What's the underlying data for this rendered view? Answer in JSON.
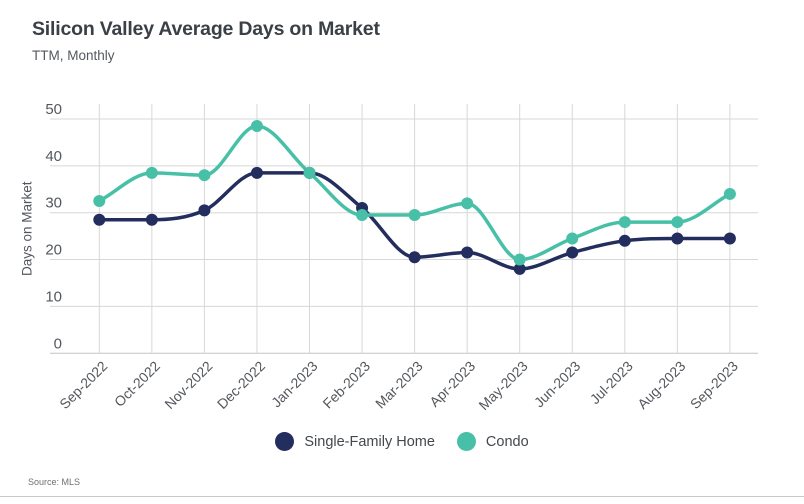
{
  "header": {
    "title": "Silicon Valley Average Days on Market",
    "subtitle": "TTM, Monthly"
  },
  "source": {
    "label": "Source: MLS"
  },
  "legend": {
    "items": [
      {
        "label": "Single-Family Home",
        "color": "#232d5e"
      },
      {
        "label": "Condo",
        "color": "#48c0a7"
      }
    ]
  },
  "chart_data": {
    "type": "line",
    "title": "Silicon Valley Average Days on Market",
    "subtitle": "TTM, Monthly",
    "ylabel": "Days on Market",
    "xlabel": "",
    "x": [
      "Sep-2022",
      "Oct-2022",
      "Nov-2022",
      "Dec-2022",
      "Jan-2023",
      "Feb-2023",
      "Mar-2023",
      "Apr-2023",
      "May-2023",
      "Jun-2023",
      "Jul-2023",
      "Aug-2023",
      "Sep-2023"
    ],
    "series": [
      {
        "name": "Single-Family Home",
        "color": "#232d5e",
        "values": [
          28.5,
          28.5,
          30.5,
          38.5,
          38.5,
          31,
          20.5,
          21.5,
          18,
          21.5,
          24,
          24.5,
          24.5
        ]
      },
      {
        "name": "Condo",
        "color": "#48c0a7",
        "values": [
          32.5,
          38.5,
          38,
          48.5,
          38.5,
          29.5,
          29.5,
          32,
          20,
          24.5,
          28,
          28,
          34
        ]
      }
    ],
    "yticks": [
      0,
      10,
      20,
      30,
      40,
      50
    ],
    "ylim": [
      0,
      50
    ],
    "grid": true,
    "legend_position": "bottom",
    "colors": {
      "gridline": "#d7d7d7",
      "axis_line": "#c3c3c3",
      "tick_label": "#54585d"
    }
  }
}
